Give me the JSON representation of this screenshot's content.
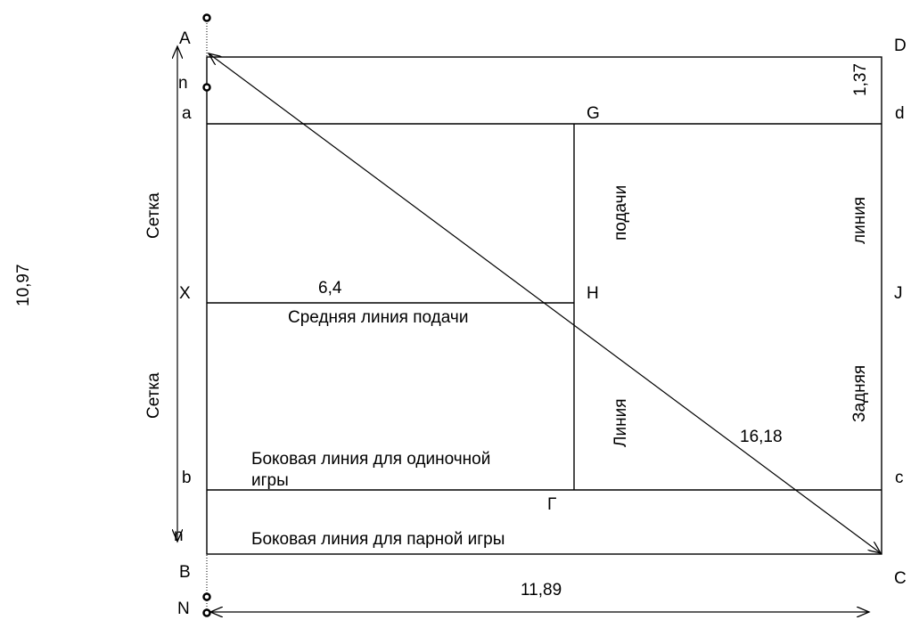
{
  "labels": {
    "A": "A",
    "D": "D",
    "n_top": "n",
    "a": "a",
    "G": "G",
    "d": "d",
    "len_137": "1,37",
    "X": "X",
    "len_64": "6,4",
    "H": "H",
    "J": "J",
    "middle_line": "Средняя линия подачи",
    "podachi": "подачи",
    "liniya_right": "линия",
    "setka_top": "Сетка",
    "setka_bottom": "Сетка",
    "len_1097": "10,97",
    "liniya_left": "Линия",
    "zadnyaya": "Задняя",
    "len_1618": "16,18",
    "side_single_1": "Боковая линия для одиночной",
    "side_single_2": "игры",
    "b": "b",
    "c": "c",
    "gamma": "Г",
    "n_bottom": "n",
    "side_double": "Боковая линия для парной игры",
    "B": "B",
    "C": "C",
    "len_1189": "11,89",
    "N": "N"
  }
}
